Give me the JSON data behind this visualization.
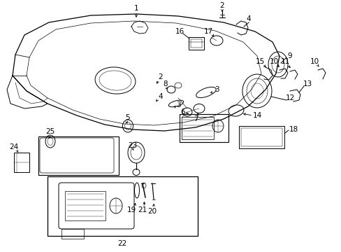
{
  "bg_color": "#ffffff",
  "line_color": "#000000",
  "figsize": [
    4.89,
    3.6
  ],
  "dpi": 100,
  "lw": 0.7,
  "label_fs": 7.5
}
